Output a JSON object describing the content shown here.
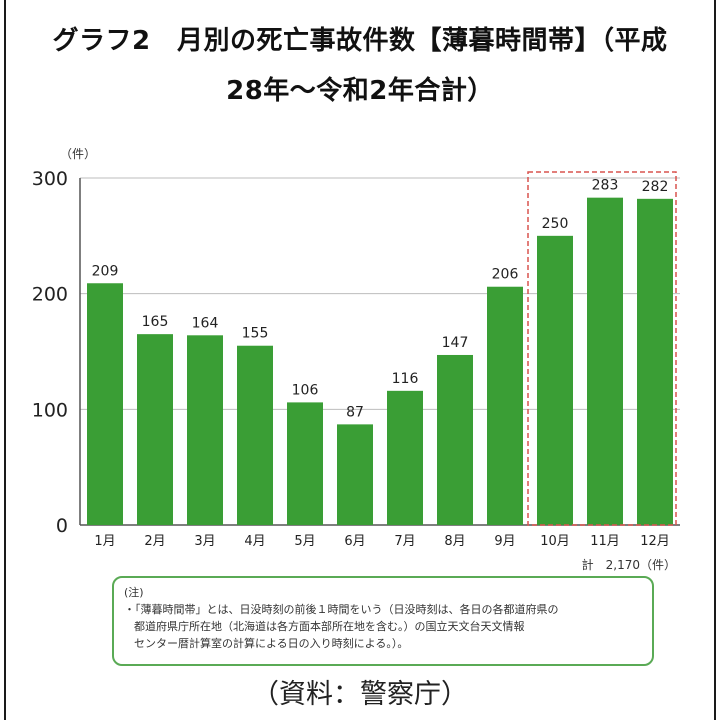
{
  "title_line1": "グラフ2　月別の死亡事故件数【薄暮時間帯】（平成",
  "title_line2": "28年〜令和2年合計）",
  "chart_data": {
    "type": "bar",
    "unit_label": "（件）",
    "categories": [
      "1月",
      "2月",
      "3月",
      "4月",
      "5月",
      "6月",
      "7月",
      "8月",
      "9月",
      "10月",
      "11月",
      "12月"
    ],
    "values": [
      209,
      165,
      164,
      155,
      106,
      87,
      116,
      147,
      206,
      250,
      283,
      282
    ],
    "ylim": [
      0,
      300
    ],
    "yticks": [
      "0",
      "100",
      "200",
      "300"
    ],
    "grid": true,
    "bar_color": "#3a9e35",
    "highlight": {
      "categories": [
        "10月",
        "11月",
        "12月"
      ],
      "style": "dashed-box",
      "color": "#d9534f"
    },
    "total_label": "計　2,170（件）"
  },
  "note": {
    "heading": "(注)",
    "lines": [
      "・「薄暮時間帯」とは、日没時刻の前後１時間をいう（日没時刻は、各日の各都道府県の",
      "都道府県庁所在地（北海道は各方面本部所在地を含む。）の国立天文台天文情報",
      "センター暦計算室の計算による日の入り時刻による。）。"
    ],
    "border_color": "#5aaa55"
  },
  "source": "（資料：警察庁）"
}
